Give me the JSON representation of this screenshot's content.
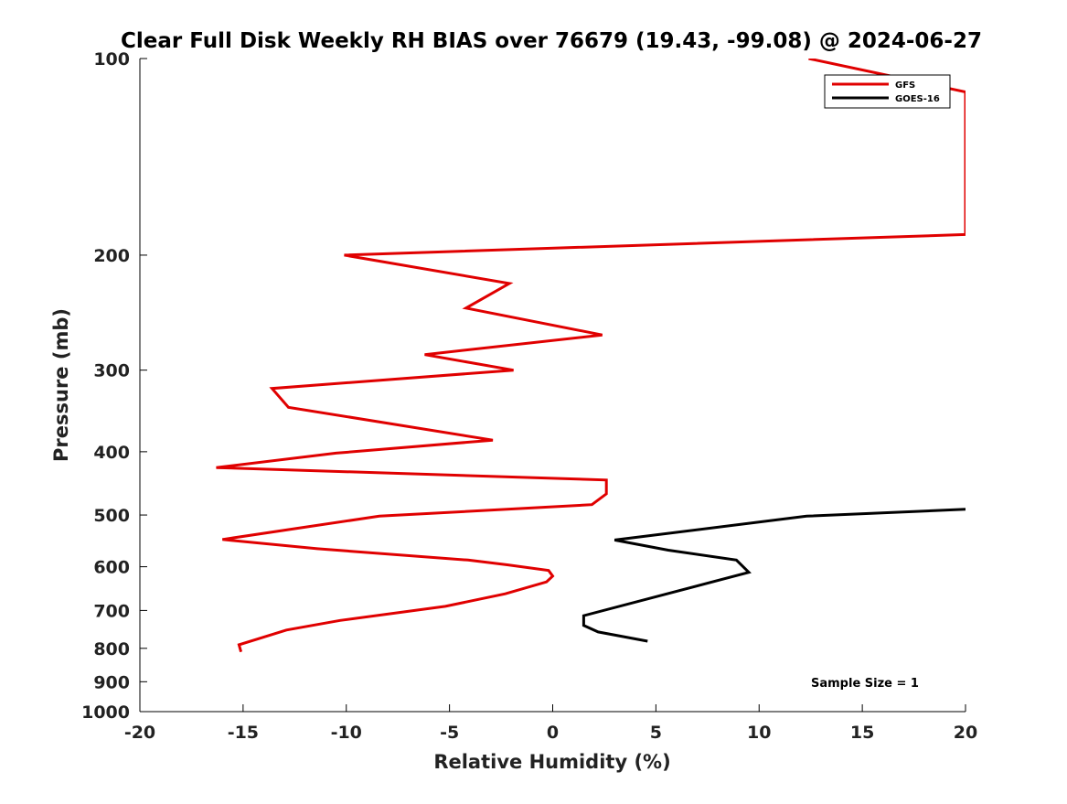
{
  "chart_data": {
    "type": "line",
    "title": "Clear Full Disk Weekly RH BIAS over 76679 (19.43, -99.08) @ 2024-06-27",
    "xlabel": "Relative Humidity (%)",
    "ylabel": "Pressure (mb)",
    "xlim": [
      -20,
      20
    ],
    "ylim": [
      100,
      1000
    ],
    "yscale": "log",
    "y_reversed": true,
    "grid": false,
    "legend_position": "top-right",
    "xticks": [
      -20,
      -15,
      -10,
      -5,
      0,
      5,
      10,
      15,
      20
    ],
    "yticks": [
      100,
      200,
      300,
      400,
      500,
      600,
      700,
      800,
      900,
      1000
    ],
    "annotation": "Sample Size = 1",
    "series": [
      {
        "name": "GFS",
        "color": "#e00000",
        "points": [
          [
            12.4,
            100
          ],
          [
            20,
            112.5
          ],
          [
            20,
            186
          ],
          [
            -10.1,
            200
          ],
          [
            -2.1,
            221
          ],
          [
            -4.2,
            241
          ],
          [
            2.4,
            265
          ],
          [
            -6.2,
            284
          ],
          [
            -1.9,
            300
          ],
          [
            -13.6,
            320
          ],
          [
            -12.8,
            342
          ],
          [
            -2.9,
            384
          ],
          [
            -10.5,
            402
          ],
          [
            -16.3,
            423
          ],
          [
            2.6,
            442
          ],
          [
            2.6,
            464
          ],
          [
            1.9,
            482
          ],
          [
            -8.4,
            502
          ],
          [
            -12.2,
            523
          ],
          [
            -16.0,
            545
          ],
          [
            -11.4,
            563
          ],
          [
            -4.1,
            586
          ],
          [
            -2.2,
            596
          ],
          [
            -0.2,
            608
          ],
          [
            0.0,
            620
          ],
          [
            -0.3,
            633
          ],
          [
            -2.3,
            660
          ],
          [
            -5.2,
            690
          ],
          [
            -10.3,
            725
          ],
          [
            -12.9,
            750
          ],
          [
            -15.2,
            790
          ],
          [
            -15.1,
            810
          ]
        ]
      },
      {
        "name": "GOES-16",
        "color": "#000000",
        "points": [
          [
            20,
            490
          ],
          [
            12.3,
            502
          ],
          [
            3.0,
            546
          ],
          [
            5.6,
            566
          ],
          [
            8.9,
            586
          ],
          [
            9.5,
            612
          ],
          [
            1.5,
            713
          ],
          [
            1.5,
            738
          ],
          [
            2.2,
            755
          ],
          [
            4.6,
            780
          ]
        ]
      }
    ]
  }
}
